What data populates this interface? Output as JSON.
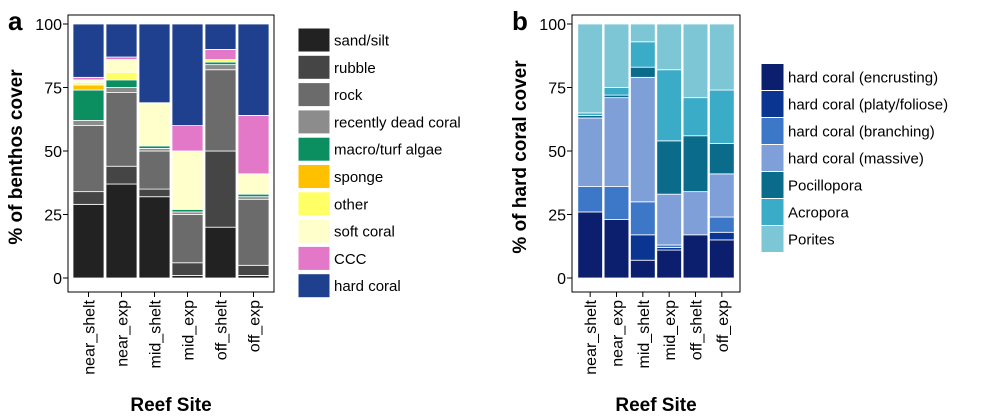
{
  "chart_data": [
    {
      "type": "stacked_bar",
      "panel_label": "a",
      "y_label": "% of benthos cover",
      "x_label": "Reef Site",
      "categories": [
        "near_shelt",
        "near_exp",
        "mid_shelt",
        "mid_exp",
        "off_shelt",
        "off_exp"
      ],
      "ylim": [
        0,
        100
      ],
      "yticks": [
        0,
        25,
        50,
        75,
        100
      ],
      "series": [
        {
          "name": "sand/silt",
          "color": "#222222",
          "values": [
            29,
            37,
            32,
            1,
            20,
            1
          ]
        },
        {
          "name": "rubble",
          "color": "#454545",
          "values": [
            5,
            7,
            3,
            5,
            30,
            4
          ]
        },
        {
          "name": "rock",
          "color": "#6b6b6b",
          "values": [
            26,
            29,
            15,
            19,
            32,
            26
          ]
        },
        {
          "name": "recently dead coral",
          "color": "#8c8c8c",
          "values": [
            2,
            2,
            1,
            1,
            2,
            1
          ]
        },
        {
          "name": "macro/turf algae",
          "color": "#0b8f60",
          "values": [
            12,
            3,
            1,
            1,
            1,
            1
          ]
        },
        {
          "name": "sponge",
          "color": "#ffc000",
          "values": [
            2,
            0,
            0,
            0,
            0,
            0
          ]
        },
        {
          "name": "other",
          "color": "#ffff66",
          "values": [
            1,
            3,
            0,
            0,
            1,
            0
          ]
        },
        {
          "name": "soft coral",
          "color": "#ffffcc",
          "values": [
            1,
            5,
            17,
            23,
            0,
            8
          ]
        },
        {
          "name": "CCC",
          "color": "#e377c8",
          "values": [
            1,
            1,
            0,
            10,
            4,
            23
          ]
        },
        {
          "name": "hard coral",
          "color": "#1f3f8f",
          "values": [
            21,
            13,
            31,
            40,
            10,
            36
          ]
        }
      ]
    },
    {
      "type": "stacked_bar",
      "panel_label": "b",
      "y_label": "% of hard coral cover",
      "x_label": "Reef Site",
      "categories": [
        "near_shelt",
        "near_exp",
        "mid_shelt",
        "mid_exp",
        "off_shelt",
        "off_exp"
      ],
      "ylim": [
        0,
        100
      ],
      "yticks": [
        0,
        25,
        50,
        75,
        100
      ],
      "series": [
        {
          "name": "hard coral (encrusting)",
          "color": "#0b1f6e",
          "values": [
            26,
            23,
            7,
            11,
            17,
            15
          ]
        },
        {
          "name": "hard coral (platy/foliose)",
          "color": "#0a3590",
          "values": [
            0,
            0,
            10,
            1,
            0,
            3
          ]
        },
        {
          "name": "hard coral (branching)",
          "color": "#3d78c8",
          "values": [
            10,
            13,
            13,
            1,
            0,
            6
          ]
        },
        {
          "name": "hard coral (massive)",
          "color": "#7f9fd9",
          "values": [
            27,
            35,
            49,
            20,
            17,
            17
          ]
        },
        {
          "name": "Pocillopora",
          "color": "#0a6b8a",
          "values": [
            1,
            1,
            4,
            21,
            22,
            12
          ]
        },
        {
          "name": "Acropora",
          "color": "#3aacc8",
          "values": [
            1,
            3,
            10,
            28,
            15,
            21
          ]
        },
        {
          "name": "Porites",
          "color": "#7cc6d6",
          "values": [
            35,
            25,
            7,
            18,
            29,
            26
          ]
        }
      ]
    }
  ]
}
